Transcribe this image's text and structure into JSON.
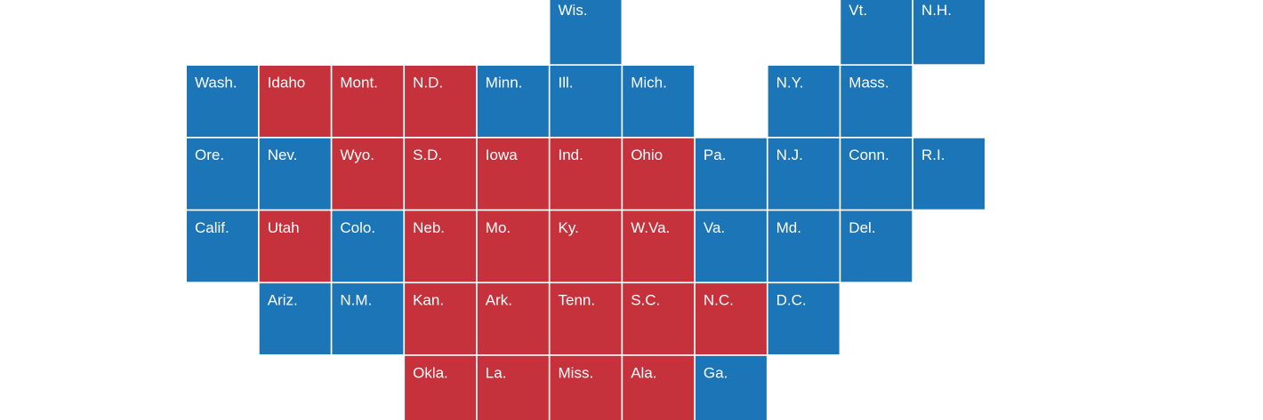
{
  "tiles": [
    {
      "label": "Wis.",
      "color": "#1b75b7"
    },
    {
      "label": "Vt.",
      "color": "#1b75b7"
    },
    {
      "label": "N.H.",
      "color": "#1b75b7"
    },
    {
      "label": "Wash.",
      "color": "#1b75b7"
    },
    {
      "label": "Idaho",
      "color": "#c5323b"
    },
    {
      "label": "Mont.",
      "color": "#c5323b"
    },
    {
      "label": "N.D.",
      "color": "#c5323b"
    },
    {
      "label": "Minn.",
      "color": "#1b75b7"
    },
    {
      "label": "Ill.",
      "color": "#1b75b7"
    },
    {
      "label": "Mich.",
      "color": "#1b75b7"
    },
    {
      "label": "N.Y.",
      "color": "#1b75b7"
    },
    {
      "label": "Mass.",
      "color": "#1b75b7"
    },
    {
      "label": "Ore.",
      "color": "#1b75b7"
    },
    {
      "label": "Nev.",
      "color": "#1b75b7"
    },
    {
      "label": "Wyo.",
      "color": "#c5323b"
    },
    {
      "label": "S.D.",
      "color": "#c5323b"
    },
    {
      "label": "Iowa",
      "color": "#c5323b"
    },
    {
      "label": "Ind.",
      "color": "#c5323b"
    },
    {
      "label": "Ohio",
      "color": "#c5323b"
    },
    {
      "label": "Pa.",
      "color": "#1b75b7"
    },
    {
      "label": "N.J.",
      "color": "#1b75b7"
    },
    {
      "label": "Conn.",
      "color": "#1b75b7"
    },
    {
      "label": "R.I.",
      "color": "#1b75b7"
    },
    {
      "label": "Calif.",
      "color": "#1b75b7"
    },
    {
      "label": "Utah",
      "color": "#c5323b"
    },
    {
      "label": "Colo.",
      "color": "#1b75b7"
    },
    {
      "label": "Neb.",
      "color": "#c5323b"
    },
    {
      "label": "Mo.",
      "color": "#c5323b"
    },
    {
      "label": "Ky.",
      "color": "#c5323b"
    },
    {
      "label": "W.Va.",
      "color": "#c5323b"
    },
    {
      "label": "Va.",
      "color": "#1b75b7"
    },
    {
      "label": "Md.",
      "color": "#1b75b7"
    },
    {
      "label": "Del.",
      "color": "#1b75b7"
    },
    {
      "label": "Ariz.",
      "color": "#1b75b7"
    },
    {
      "label": "N.M.",
      "color": "#1b75b7"
    },
    {
      "label": "Kan.",
      "color": "#c5323b"
    },
    {
      "label": "Ark.",
      "color": "#c5323b"
    },
    {
      "label": "Tenn.",
      "color": "#c5323b"
    },
    {
      "label": "S.C.",
      "color": "#c5323b"
    },
    {
      "label": "N.C.",
      "color": "#c5323b"
    },
    {
      "label": "D.C.",
      "color": "#1b75b7"
    },
    {
      "label": "Okla.",
      "color": "#c5323b"
    },
    {
      "label": "La.",
      "color": "#c5323b"
    },
    {
      "label": "Miss.",
      "color": "#c5323b"
    },
    {
      "label": "Ala.",
      "color": "#c5323b"
    },
    {
      "label": "Ga.",
      "color": "#1b75b7"
    }
  ]
}
